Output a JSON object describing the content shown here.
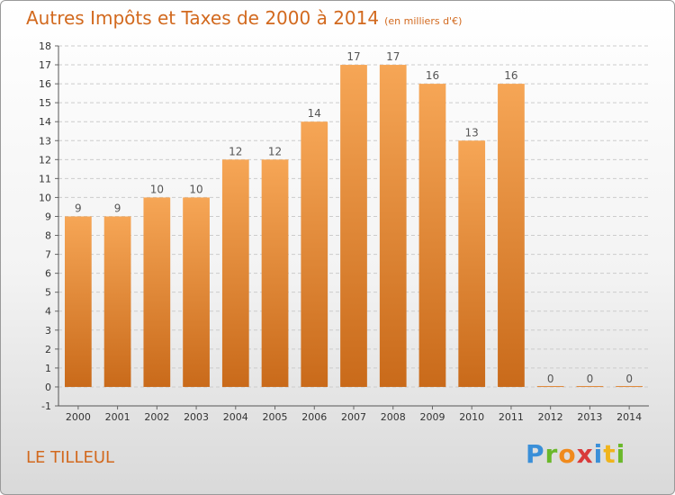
{
  "title": "Autres Impôts et Taxes de 2000 à 2014",
  "unit_note": "(en milliers d'€)",
  "location": "LE TILLEUL",
  "brand": {
    "letters": [
      "P",
      "r",
      "o",
      "x",
      "i",
      "t",
      "i"
    ],
    "colors": [
      "#3a8fd8",
      "#6ab82a",
      "#f08a1c",
      "#d93a3a",
      "#3a8fd8",
      "#f0b41c",
      "#6ab82a"
    ]
  },
  "colors": {
    "accent": "#d2691e",
    "bar_top": "#f6a656",
    "bar_bottom": "#c96a1a",
    "grid": "#cccccc"
  },
  "chart_data": {
    "type": "bar",
    "categories": [
      "2000",
      "2001",
      "2002",
      "2003",
      "2004",
      "2005",
      "2006",
      "2007",
      "2008",
      "2009",
      "2010",
      "2011",
      "2012",
      "2013",
      "2014"
    ],
    "values": [
      9,
      9,
      10,
      10,
      12,
      12,
      14,
      17,
      17,
      16,
      13,
      16,
      0,
      0,
      0
    ],
    "title": "Autres Impôts et Taxes de 2000 à 2014",
    "xlabel": "",
    "ylabel": "",
    "ylim": [
      -1,
      18
    ],
    "yticks": [
      -1,
      0,
      1,
      2,
      3,
      4,
      5,
      6,
      7,
      8,
      9,
      10,
      11,
      12,
      13,
      14,
      15,
      16,
      17,
      18
    ],
    "grid": true
  }
}
